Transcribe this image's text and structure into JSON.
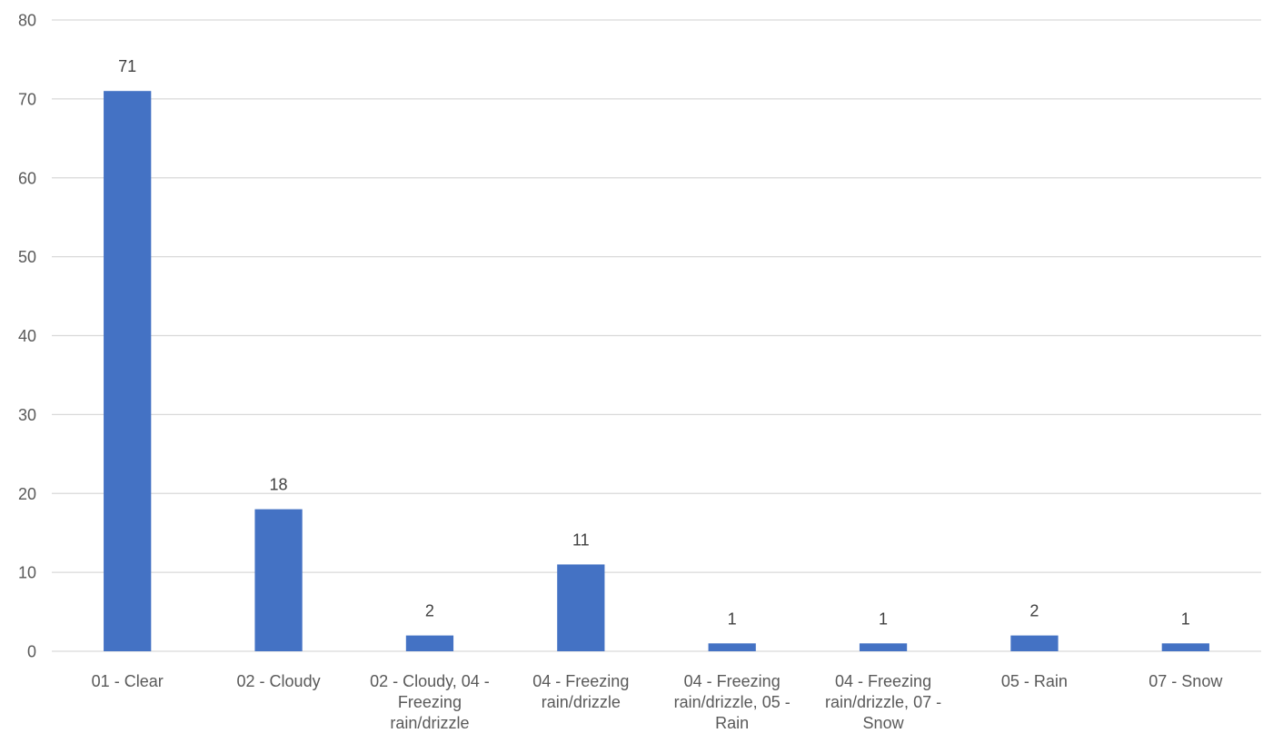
{
  "chart_data": {
    "type": "bar",
    "title": "",
    "xlabel": "",
    "ylabel": "",
    "categories": [
      "01 - Clear",
      "02 - Cloudy",
      "02 - Cloudy, 04 - Freezing rain/drizzle",
      "04 - Freezing rain/drizzle",
      "04 - Freezing rain/drizzle, 05 - Rain",
      "04 - Freezing rain/drizzle, 07 - Snow",
      "05 - Rain",
      "07 - Snow"
    ],
    "category_label_lines": [
      [
        "01 - Clear"
      ],
      [
        "02 - Cloudy"
      ],
      [
        "02 - Cloudy, 04 -",
        "Freezing",
        "rain/drizzle"
      ],
      [
        "04 - Freezing",
        "rain/drizzle"
      ],
      [
        "04 - Freezing",
        "rain/drizzle, 05 -",
        "Rain"
      ],
      [
        "04 - Freezing",
        "rain/drizzle, 07 -",
        "Snow"
      ],
      [
        "05 - Rain"
      ],
      [
        "07 - Snow"
      ]
    ],
    "values": [
      71,
      18,
      2,
      11,
      1,
      1,
      2,
      1
    ],
    "ylim": [
      0,
      80
    ],
    "y_ticks": [
      0,
      10,
      20,
      30,
      40,
      50,
      60,
      70,
      80
    ],
    "grid": true,
    "legend": "none",
    "bar_color": "#4472c4",
    "data_labels": true
  }
}
